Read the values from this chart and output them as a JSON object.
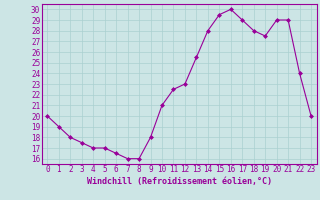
{
  "x": [
    0,
    1,
    2,
    3,
    4,
    5,
    6,
    7,
    8,
    9,
    10,
    11,
    12,
    13,
    14,
    15,
    16,
    17,
    18,
    19,
    20,
    21,
    22,
    23
  ],
  "y": [
    20,
    19,
    18,
    17.5,
    17,
    17,
    16.5,
    16,
    16,
    18,
    21,
    22.5,
    23,
    25.5,
    28,
    29.5,
    30,
    29,
    28,
    27.5,
    29,
    29,
    24,
    20
  ],
  "line_color": "#990099",
  "marker": "D",
  "markersize": 2.0,
  "bg_color": "#cce5e5",
  "grid_color": "#aad0d0",
  "xlabel": "Windchill (Refroidissement éolien,°C)",
  "xlim": [
    -0.5,
    23.5
  ],
  "ylim": [
    15.5,
    30.5
  ],
  "yticks": [
    16,
    17,
    18,
    19,
    20,
    21,
    22,
    23,
    24,
    25,
    26,
    27,
    28,
    29,
    30
  ],
  "xticks": [
    0,
    1,
    2,
    3,
    4,
    5,
    6,
    7,
    8,
    9,
    10,
    11,
    12,
    13,
    14,
    15,
    16,
    17,
    18,
    19,
    20,
    21,
    22,
    23
  ],
  "tick_fontsize": 5.5,
  "xlabel_fontsize": 6.0,
  "linewidth": 0.8,
  "spine_color": "#990099"
}
